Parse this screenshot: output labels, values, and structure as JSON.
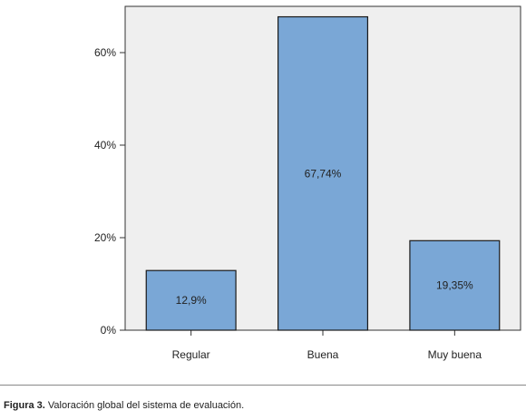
{
  "caption": {
    "label": "Figura 3.",
    "text": "Valoración global del sistema de evaluación."
  },
  "chart_data": {
    "type": "bar",
    "categories": [
      "Regular",
      "Buena",
      "Muy buena"
    ],
    "values": [
      12.9,
      67.74,
      19.35
    ],
    "value_labels": [
      "12,9%",
      "67,74%",
      "19,35%"
    ],
    "ylim": [
      0,
      70
    ],
    "yticks": [
      0,
      20,
      40,
      60
    ],
    "ytick_labels": [
      "0%",
      "20%",
      "40%",
      "60%"
    ],
    "grid": false,
    "colors": {
      "plot_bg": "#efefef",
      "bar_fill": "#7aa7d6",
      "bar_stroke": "#1a1a1a"
    }
  }
}
